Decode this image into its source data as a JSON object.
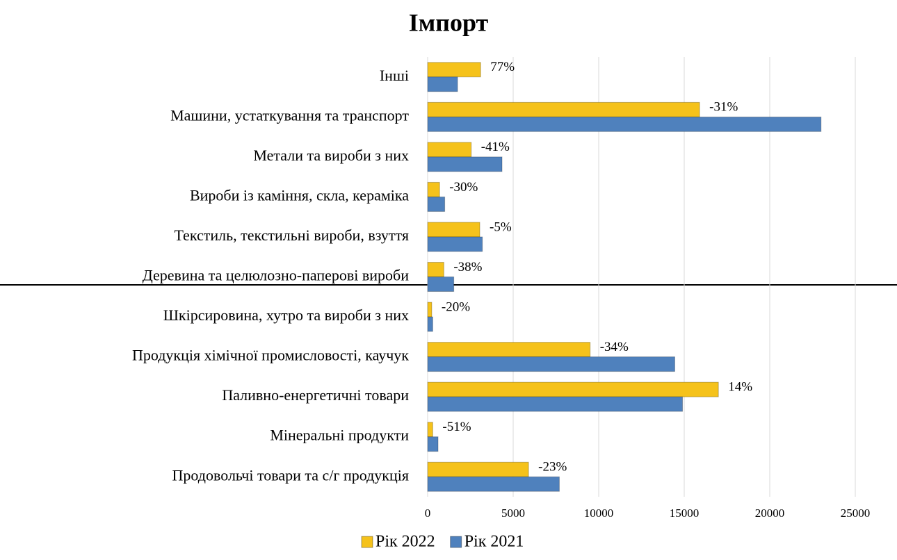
{
  "chart_data": {
    "type": "hbar",
    "title": "Імпорт",
    "categories": [
      "Інші",
      "Машини, устаткування та транспорт",
      "Метали та вироби з них",
      "Вироби із каміння, скла, кераміка",
      "Текстиль, текстильні вироби, взуття",
      "Деревина та целюлозно-паперові вироби",
      "Шкірсировина, хутро та вироби з них",
      "Продукція хімічної промисловості, каучук",
      "Паливно-енергетичні товари",
      "Мінеральні продукти",
      "Продовольчі товари та с/г продукція"
    ],
    "series": [
      {
        "name": "Рік 2022",
        "color": "#f5c21b",
        "values": [
          3100,
          15900,
          2550,
          700,
          3050,
          950,
          240,
          9500,
          17000,
          300,
          5900
        ]
      },
      {
        "name": "Рік 2021",
        "color": "#4f81bd",
        "values": [
          1750,
          23000,
          4350,
          1000,
          3200,
          1530,
          300,
          14450,
          14900,
          610,
          7700
        ]
      }
    ],
    "annotations": [
      "77%",
      "-31%",
      "-41%",
      "-30%",
      "-5%",
      "-38%",
      "-20%",
      "-34%",
      "14%",
      "-51%",
      "-23%"
    ],
    "xlim": [
      0,
      25000
    ],
    "xticks": [
      0,
      5000,
      10000,
      15000,
      20000,
      25000
    ],
    "grid": true,
    "legend": "bottom"
  }
}
